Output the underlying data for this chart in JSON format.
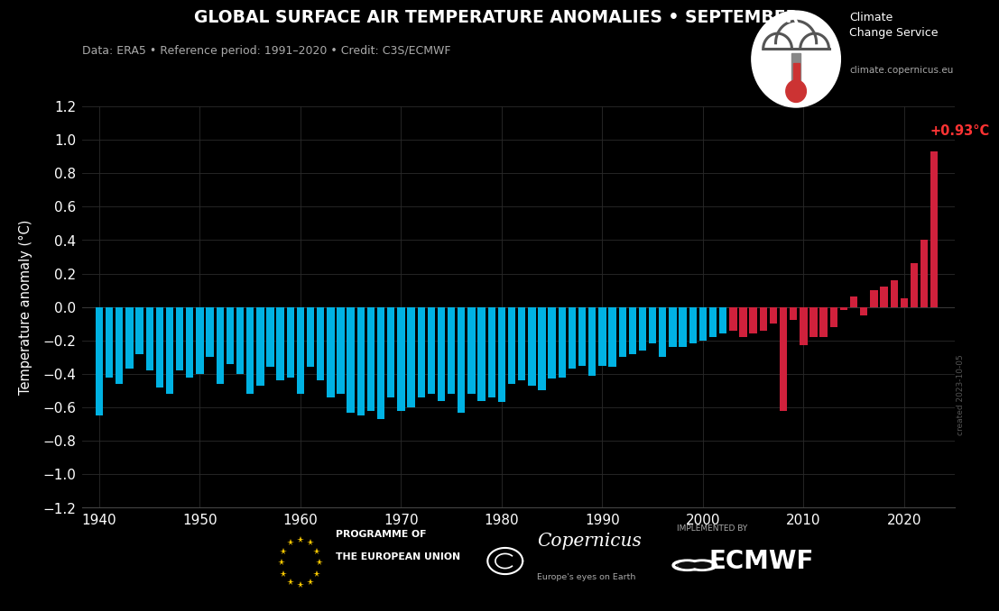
{
  "title": "GLOBAL SURFACE AIR TEMPERATURE ANOMALIES • SEPTEMBER",
  "subtitle": "Data: ERA5 • Reference period: 1991–2020 • Credit: C3S/ECMWF",
  "ylabel": "Temperature anomaly (°C)",
  "website": "climate.copernicus.eu",
  "service_label1": "Climate",
  "service_label2": "Change Service",
  "created": "created 2023-10-05",
  "annotation": "+0.93°C",
  "bg": "#000000",
  "fg": "#ffffff",
  "fg_dim": "#aaaaaa",
  "blue": "#00b2e3",
  "red": "#d0213c",
  "ann_red": "#ff3333",
  "grid": "#2a2a2a",
  "ylim": [
    -1.2,
    1.2
  ],
  "yticks": [
    -1.2,
    -1.0,
    -0.8,
    -0.6,
    -0.4,
    -0.2,
    0.0,
    0.2,
    0.4,
    0.6,
    0.8,
    1.0,
    1.2
  ],
  "xticks": [
    1940,
    1950,
    1960,
    1970,
    1980,
    1990,
    2000,
    2010,
    2020
  ],
  "xlim": [
    1938.3,
    2025.0
  ],
  "years": [
    1940,
    1941,
    1942,
    1943,
    1944,
    1945,
    1946,
    1947,
    1948,
    1949,
    1950,
    1951,
    1952,
    1953,
    1954,
    1955,
    1956,
    1957,
    1958,
    1959,
    1960,
    1961,
    1962,
    1963,
    1964,
    1965,
    1966,
    1967,
    1968,
    1969,
    1970,
    1971,
    1972,
    1973,
    1974,
    1975,
    1976,
    1977,
    1978,
    1979,
    1980,
    1981,
    1982,
    1983,
    1984,
    1985,
    1986,
    1987,
    1988,
    1989,
    1990,
    1991,
    1992,
    1993,
    1994,
    1995,
    1996,
    1997,
    1998,
    1999,
    2000,
    2001,
    2002,
    2003,
    2004,
    2005,
    2006,
    2007,
    2008,
    2009,
    2010,
    2011,
    2012,
    2013,
    2014,
    2015,
    2016,
    2017,
    2018,
    2019,
    2020,
    2021,
    2022,
    2023
  ],
  "values": [
    -0.65,
    -0.42,
    -0.46,
    -0.37,
    -0.28,
    -0.38,
    -0.48,
    -0.52,
    -0.38,
    -0.42,
    -0.4,
    -0.3,
    -0.46,
    -0.34,
    -0.4,
    -0.52,
    -0.47,
    -0.36,
    -0.44,
    -0.42,
    -0.52,
    -0.36,
    -0.44,
    -0.54,
    -0.52,
    -0.63,
    -0.65,
    -0.62,
    -0.67,
    -0.54,
    -0.62,
    -0.6,
    -0.54,
    -0.52,
    -0.56,
    -0.52,
    -0.63,
    -0.52,
    -0.56,
    -0.54,
    -0.57,
    -0.46,
    -0.44,
    -0.47,
    -0.5,
    -0.43,
    -0.42,
    -0.37,
    -0.35,
    -0.41,
    -0.35,
    -0.36,
    -0.3,
    -0.28,
    -0.26,
    -0.22,
    -0.3,
    -0.24,
    -0.24,
    -0.22,
    -0.2,
    -0.18,
    -0.16,
    -0.14,
    -0.18,
    -0.16,
    -0.14,
    -0.1,
    -0.62,
    -0.08,
    -0.23,
    -0.18,
    -0.18,
    -0.12,
    -0.02,
    0.06,
    -0.05,
    0.1,
    0.12,
    0.16,
    0.05,
    0.26,
    0.4,
    0.93
  ],
  "red_from": 2003,
  "bar_width": 0.75
}
